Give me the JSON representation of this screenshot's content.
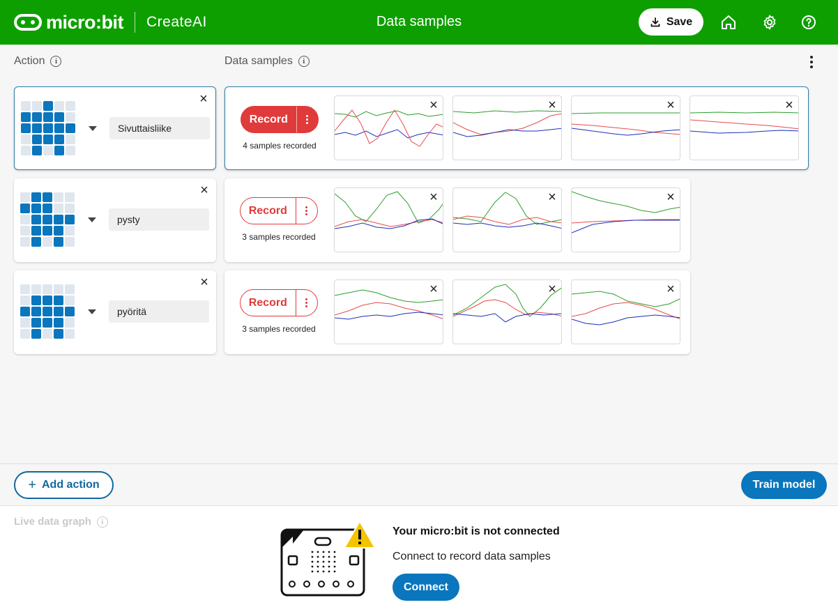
{
  "header": {
    "logo_text": "micro:bit",
    "logo_sub": "CreateAI",
    "title": "Data samples",
    "save_label": "Save",
    "bg_color": "#0d9f00"
  },
  "columns": {
    "action_label": "Action",
    "samples_label": "Data samples"
  },
  "actions": [
    {
      "name": "Sivuttaisliike",
      "selected": true,
      "led": [
        0,
        0,
        1,
        0,
        0,
        1,
        1,
        1,
        1,
        0,
        1,
        1,
        1,
        1,
        1,
        0,
        1,
        1,
        1,
        0,
        0,
        1,
        0,
        1,
        0
      ],
      "record_label": "Record",
      "samples_text": "4 samples recorded"
    },
    {
      "name": "pysty",
      "selected": false,
      "led": [
        0,
        1,
        1,
        0,
        0,
        1,
        1,
        1,
        0,
        0,
        0,
        1,
        1,
        1,
        1,
        0,
        1,
        1,
        1,
        0,
        0,
        1,
        0,
        1,
        0
      ],
      "record_label": "Record",
      "samples_text": "3 samples recorded"
    },
    {
      "name": "pyöritä",
      "selected": false,
      "led": [
        0,
        0,
        0,
        0,
        0,
        0,
        1,
        1,
        1,
        0,
        1,
        1,
        1,
        1,
        1,
        0,
        1,
        1,
        1,
        0,
        0,
        1,
        0,
        1,
        0
      ],
      "record_label": "Record",
      "samples_text": "3 samples recorded"
    }
  ],
  "footer": {
    "add_action_label": "Add action",
    "train_label": "Train model",
    "live_graph_label": "Live data graph",
    "not_connected_title": "Your micro:bit is not connected",
    "not_connected_sub": "Connect to record data samples",
    "connect_label": "Connect"
  },
  "colors": {
    "record": "#e03a3a",
    "primary": "#0a76bd",
    "trace_x": "#e84a4a",
    "trace_y": "#2a9d2a",
    "trace_z": "#1a2fb8"
  }
}
